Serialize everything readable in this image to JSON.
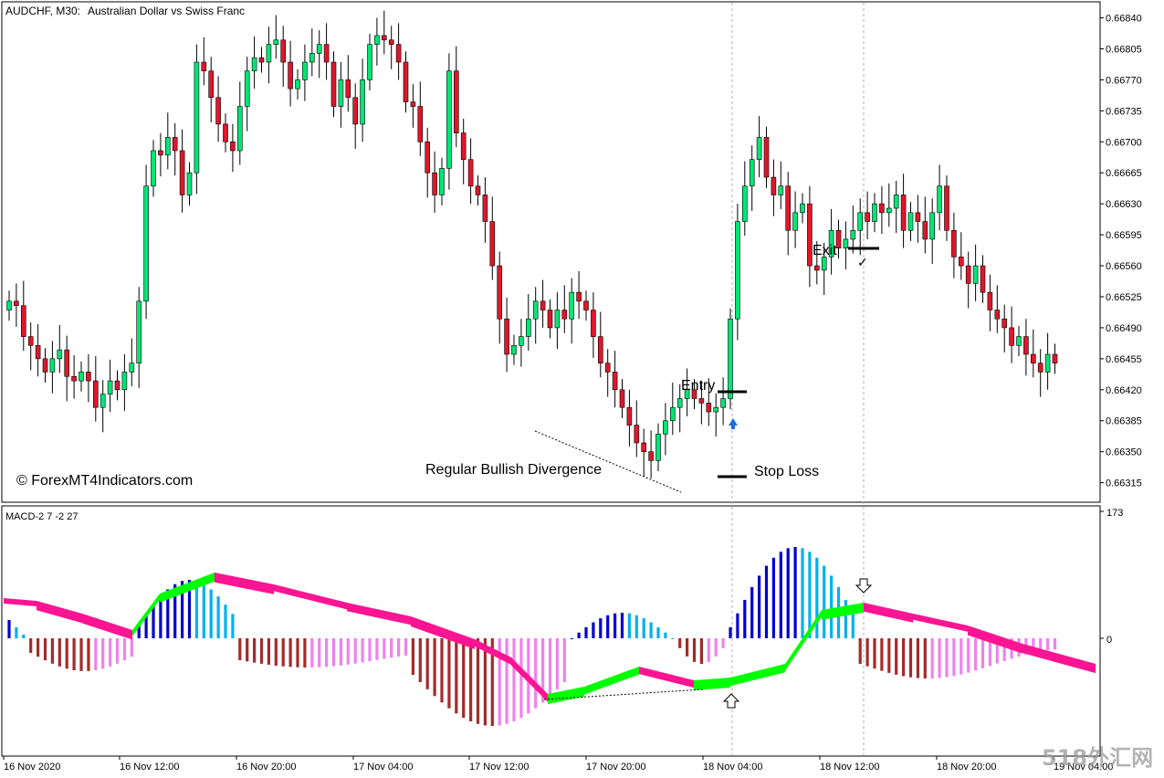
{
  "chart_header": {
    "symbol": "AUDCHF, M30:",
    "description": "Australian Dollar vs Swiss Franc"
  },
  "watermark": "© ForexMT4Indicators.com",
  "corner_watermark": "518外汇网",
  "annotations": {
    "entry": "Entry",
    "exit": "Exit",
    "stop_loss": "Stop Loss",
    "divergence": "Regular Bullish Divergence",
    "check": "✓"
  },
  "indicator": {
    "name": "MACD-2 7 -2 27",
    "scale_top": "173",
    "scale_zero": "0"
  },
  "colors": {
    "bull": "#00E676",
    "bear": "#E0162B",
    "wick": "#000000",
    "hist_up_strong": "#0000CC",
    "hist_up_weak": "#00B0F0",
    "hist_down_strong": "#A52A2A",
    "hist_down_weak": "#EE82EE",
    "cloud_bull": "#00FF00",
    "cloud_bear": "#FF1493",
    "signal_arrow": "#1E6FD9"
  },
  "chart_data": {
    "type": "candlestick",
    "title": "AUDCHF, M30: Australian Dollar vs Swiss Franc",
    "price_axis": {
      "ylim": [
        0.66295,
        0.66855
      ],
      "ticks": [
        "0.66840",
        "0.66805",
        "0.66770",
        "0.66735",
        "0.66700",
        "0.66665",
        "0.66630",
        "0.66595",
        "0.66560",
        "0.66525",
        "0.66490",
        "0.66455",
        "0.66420",
        "0.66385",
        "0.66350",
        "0.66315"
      ]
    },
    "time_labels": [
      "16 Nov 2020",
      "16 Nov 12:00",
      "16 Nov 20:00",
      "17 Nov 04:00",
      "17 Nov 12:00",
      "17 Nov 20:00",
      "18 Nov 04:00",
      "18 Nov 12:00",
      "18 Nov 20:00",
      "19 Nov 04:00"
    ],
    "closes": [
      0.6652,
      0.66515,
      0.6648,
      0.6647,
      0.66455,
      0.6644,
      0.66455,
      0.66465,
      0.66435,
      0.6643,
      0.6644,
      0.6643,
      0.664,
      0.66415,
      0.6643,
      0.6642,
      0.6644,
      0.6645,
      0.6652,
      0.6665,
      0.6669,
      0.66685,
      0.66705,
      0.6669,
      0.6664,
      0.66665,
      0.6679,
      0.6678,
      0.6675,
      0.6672,
      0.667,
      0.6669,
      0.6674,
      0.6678,
      0.66795,
      0.6679,
      0.6681,
      0.66815,
      0.6679,
      0.6676,
      0.6677,
      0.6679,
      0.668,
      0.6681,
      0.6679,
      0.6674,
      0.6677,
      0.6675,
      0.6672,
      0.6677,
      0.6681,
      0.6682,
      0.66815,
      0.6681,
      0.6679,
      0.66745,
      0.6674,
      0.667,
      0.66665,
      0.6664,
      0.6667,
      0.6678,
      0.6671,
      0.6668,
      0.6665,
      0.6664,
      0.6661,
      0.6656,
      0.665,
      0.6646,
      0.6647,
      0.6648,
      0.665,
      0.6652,
      0.6651,
      0.6649,
      0.6651,
      0.665,
      0.6653,
      0.6652,
      0.6651,
      0.6648,
      0.6645,
      0.6644,
      0.6642,
      0.664,
      0.6638,
      0.6636,
      0.6635,
      0.6634,
      0.6637,
      0.66385,
      0.664,
      0.6641,
      0.6642,
      0.6641,
      0.66405,
      0.66395,
      0.664,
      0.6641,
      0.665,
      0.6661,
      0.6665,
      0.6668,
      0.66705,
      0.6666,
      0.6664,
      0.6665,
      0.666,
      0.6662,
      0.6663,
      0.6656,
      0.66555,
      0.6657,
      0.666,
      0.6658,
      0.6659,
      0.666,
      0.6662,
      0.6661,
      0.6663,
      0.6662,
      0.66625,
      0.6664,
      0.666,
      0.6662,
      0.6661,
      0.6659,
      0.6662,
      0.6665,
      0.666,
      0.6657,
      0.6656,
      0.6654,
      0.6656,
      0.6653,
      0.6651,
      0.665,
      0.6649,
      0.6647,
      0.6648,
      0.6646,
      0.6645,
      0.6644,
      0.6646,
      0.6645
    ],
    "panels": [
      {
        "name": "price",
        "series": "AUDCHF M30 candles"
      },
      {
        "name": "MACD-2 7 -2 27",
        "series": "histogram + signal cloud",
        "ylim": [
          -115,
          173
        ]
      }
    ],
    "grid": false
  }
}
